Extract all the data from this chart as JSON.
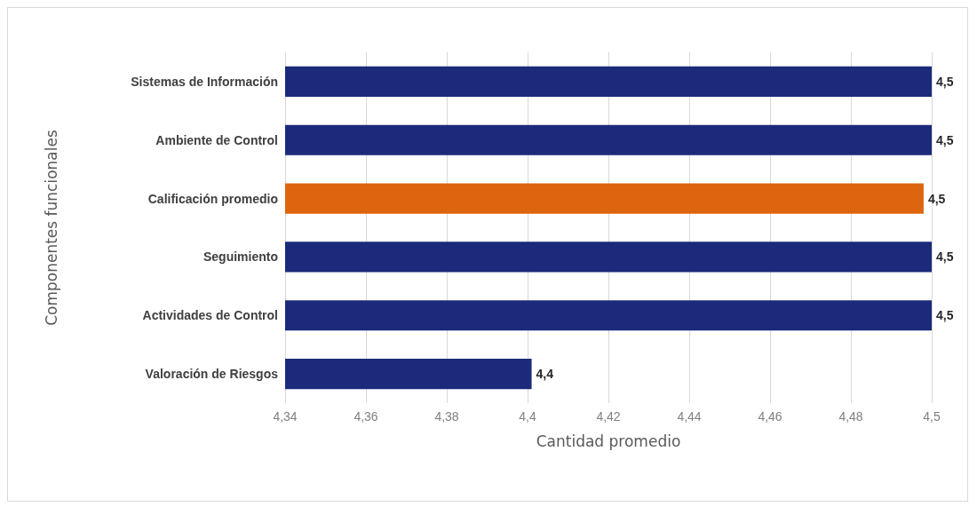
{
  "chart_data": {
    "type": "bar",
    "orientation": "horizontal",
    "xlabel": "Cantidad promedio",
    "ylabel": "Componentes funcionales",
    "categories": [
      "Sistemas de Información",
      "Ambiente de Control",
      "Calificación promedio",
      "Seguimiento",
      "Actividades de Control",
      "Valoración de Riesgos"
    ],
    "values": [
      4.5,
      4.5,
      4.498,
      4.5,
      4.5,
      4.401
    ],
    "value_labels": [
      "4,5",
      "4,5",
      "4,5",
      "4,5",
      "4,5",
      "4,4"
    ],
    "colors": [
      "#1b2a7a",
      "#1b2a7a",
      "#de650f",
      "#1b2a7a",
      "#1b2a7a",
      "#1b2a7a"
    ],
    "xlim": [
      4.34,
      4.5
    ],
    "xticks": [
      {
        "value": 4.34,
        "label": "4,34"
      },
      {
        "value": 4.36,
        "label": "4,36"
      },
      {
        "value": 4.38,
        "label": "4,38"
      },
      {
        "value": 4.4,
        "label": "4,4"
      },
      {
        "value": 4.42,
        "label": "4,42"
      },
      {
        "value": 4.44,
        "label": "4,44"
      },
      {
        "value": 4.46,
        "label": "4,46"
      },
      {
        "value": 4.48,
        "label": "4,48"
      },
      {
        "value": 4.5,
        "label": "4,5"
      }
    ],
    "grid": "x"
  }
}
